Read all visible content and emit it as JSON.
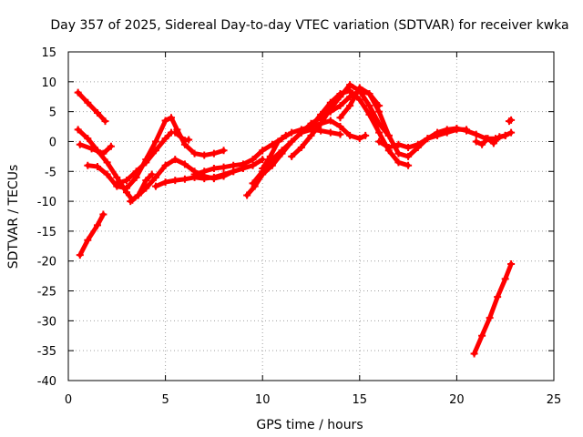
{
  "chart_data": {
    "type": "scatter",
    "title": "Day 357 of 2025, Sidereal Day-to-day VTEC variation (SDTVAR) for receiver kwka",
    "xlabel": "GPS time / hours",
    "ylabel": "SDTVAR / TECUs",
    "xlim": [
      0,
      25
    ],
    "ylim": [
      -40,
      15
    ],
    "xticks": [
      0,
      5,
      10,
      15,
      20,
      25
    ],
    "yticks": [
      -40,
      -35,
      -30,
      -25,
      -20,
      -15,
      -10,
      -5,
      0,
      5,
      10,
      15
    ],
    "grid": true,
    "marker_color": "#ff0000",
    "series": [
      {
        "name": "s1",
        "x": [
          0.5,
          1.0,
          1.5,
          1.9
        ],
        "y": [
          8.2,
          6.5,
          4.8,
          3.4
        ]
      },
      {
        "name": "s2",
        "x": [
          0.5,
          1.0,
          1.5,
          2.0,
          2.5,
          3.0,
          3.3,
          3.6,
          4.0,
          4.3
        ],
        "y": [
          2.0,
          0.5,
          -1.5,
          -3.5,
          -6.0,
          -8.5,
          -9.8,
          -9.0,
          -6.5,
          -5.5
        ]
      },
      {
        "name": "s3",
        "x": [
          0.6,
          1.2,
          1.8,
          2.2
        ],
        "y": [
          -0.5,
          -1.2,
          -2.0,
          -0.8
        ]
      },
      {
        "name": "s4",
        "x": [
          0.6,
          1.0,
          1.5,
          1.8
        ],
        "y": [
          -19.0,
          -16.5,
          -14.0,
          -12.2
        ]
      },
      {
        "name": "s5",
        "x": [
          1.0,
          1.5,
          2.0,
          2.5,
          3.0,
          3.5,
          4.0,
          4.5,
          5.0,
          5.3,
          5.6,
          6.0,
          6.5,
          7.0,
          7.5,
          8.0
        ],
        "y": [
          -4.0,
          -4.2,
          -5.5,
          -7.5,
          -7.8,
          -6.0,
          -3.0,
          0.0,
          3.5,
          4.0,
          2.0,
          -0.5,
          -2.0,
          -2.3,
          -2.0,
          -1.5
        ]
      },
      {
        "name": "s6",
        "x": [
          2.5,
          3.0,
          3.5,
          4.0,
          4.5,
          5.0,
          5.3
        ],
        "y": [
          -7.0,
          -6.5,
          -5.0,
          -3.5,
          -1.5,
          0.5,
          1.5
        ]
      },
      {
        "name": "s7",
        "x": [
          3.2,
          3.6,
          4.0,
          4.5,
          5.0,
          5.5,
          6.0,
          6.5,
          7.0,
          7.5,
          8.0,
          8.5,
          9.0
        ],
        "y": [
          -10.0,
          -9.0,
          -7.8,
          -6.0,
          -4.0,
          -3.0,
          -3.8,
          -5.0,
          -5.8,
          -6.2,
          -5.8,
          -5.0,
          -4.5
        ]
      },
      {
        "name": "s8",
        "x": [
          4.5,
          5.0,
          5.5,
          6.0,
          6.5,
          7.0,
          7.5,
          8.0,
          8.5,
          9.0,
          9.5,
          10.0
        ],
        "y": [
          -7.5,
          -6.8,
          -6.5,
          -6.3,
          -6.0,
          -6.2,
          -6.0,
          -5.5,
          -5.0,
          -4.5,
          -4.0,
          -3.0
        ]
      },
      {
        "name": "s9",
        "x": [
          5.5,
          6.0,
          6.2
        ],
        "y": [
          1.5,
          0.2,
          0.3
        ]
      },
      {
        "name": "s10",
        "x": [
          6.5,
          7.0,
          7.5,
          8.0,
          8.5,
          9.0,
          9.5,
          10.0,
          10.5,
          11.0,
          11.5,
          12.0,
          12.5,
          13.0,
          13.5,
          14.0,
          14.5,
          15.0,
          15.3
        ],
        "y": [
          -5.5,
          -5.0,
          -4.5,
          -4.3,
          -4.0,
          -3.8,
          -3.0,
          -1.5,
          -0.5,
          0.5,
          1.5,
          2.0,
          2.5,
          3.0,
          3.5,
          2.5,
          1.0,
          0.5,
          1.0
        ]
      },
      {
        "name": "s11",
        "x": [
          9.2,
          9.6,
          10.0,
          10.5,
          11.0,
          11.5,
          12.0,
          12.5,
          13.0,
          13.5,
          14.0
        ],
        "y": [
          -9.0,
          -7.5,
          -5.5,
          -4.0,
          -2.0,
          0.0,
          1.5,
          2.0,
          1.8,
          1.5,
          1.2
        ]
      },
      {
        "name": "s12",
        "x": [
          9.5,
          10.0,
          10.5,
          11.0,
          11.5,
          12.0,
          12.5,
          13.0,
          13.5,
          14.0,
          14.5,
          15.0,
          15.5,
          16.0,
          16.5,
          17.0,
          17.5
        ],
        "y": [
          -7.0,
          -5.0,
          -3.0,
          -1.5,
          0.0,
          1.5,
          2.5,
          4.5,
          6.5,
          8.0,
          8.5,
          7.0,
          4.5,
          1.5,
          -1.5,
          -3.5,
          -4.0
        ]
      },
      {
        "name": "s13",
        "x": [
          10.0,
          10.4,
          10.8,
          11.2
        ],
        "y": [
          -4.5,
          -2.5,
          0.0,
          1.0
        ]
      },
      {
        "name": "s14",
        "x": [
          11.5,
          12.0,
          12.5,
          13.0,
          13.5,
          14.0,
          14.5,
          15.0,
          15.5,
          16.0,
          16.5
        ],
        "y": [
          -2.5,
          -1.0,
          1.0,
          3.0,
          5.5,
          7.5,
          9.5,
          8.5,
          6.0,
          3.0,
          1.0
        ]
      },
      {
        "name": "s15",
        "x": [
          12.0,
          12.5,
          13.0,
          13.5,
          14.0,
          14.5,
          15.0,
          15.5,
          16.0
        ],
        "y": [
          1.5,
          3.0,
          4.0,
          5.0,
          6.0,
          7.5,
          8.5,
          8.0,
          6.0
        ]
      },
      {
        "name": "s16",
        "x": [
          14.0,
          14.5,
          15.0,
          15.5,
          16.0,
          16.5,
          17.0,
          17.5,
          18.0,
          18.5,
          19.0,
          19.5,
          20.0,
          20.5,
          21.0,
          21.5,
          22.0,
          22.5,
          22.8
        ],
        "y": [
          4.0,
          6.0,
          9.0,
          8.0,
          5.0,
          1.0,
          -2.0,
          -2.5,
          -1.0,
          0.5,
          1.5,
          2.0,
          2.2,
          1.8,
          1.2,
          0.5,
          0.5,
          1.0,
          1.5
        ]
      },
      {
        "name": "s17",
        "x": [
          16.0,
          16.5,
          17.0,
          17.5,
          18.0,
          18.5,
          19.0,
          19.5,
          20.0,
          20.5
        ],
        "y": [
          0.0,
          -1.0,
          -0.5,
          -1.0,
          -0.5,
          0.5,
          1.0,
          1.5,
          2.0,
          2.0
        ]
      },
      {
        "name": "s18",
        "x": [
          21.0,
          21.3,
          21.6,
          21.9,
          22.2,
          22.5
        ],
        "y": [
          0.0,
          -0.5,
          0.5,
          -0.3,
          0.8,
          1.0
        ]
      },
      {
        "name": "s19",
        "x": [
          20.9,
          21.3,
          21.7,
          22.1,
          22.5,
          22.8
        ],
        "y": [
          -35.5,
          -32.5,
          -29.5,
          -26.0,
          -23.0,
          -20.5
        ]
      },
      {
        "name": "s20",
        "x": [
          22.7,
          22.8
        ],
        "y": [
          3.4,
          3.6
        ]
      }
    ]
  }
}
